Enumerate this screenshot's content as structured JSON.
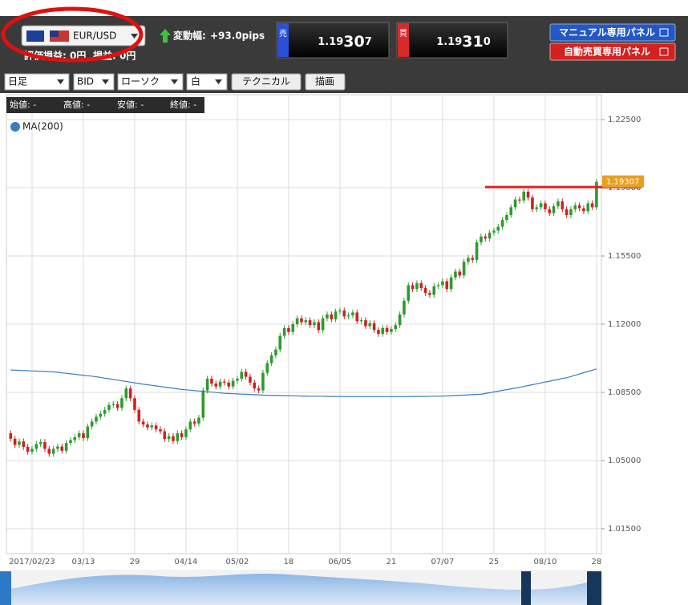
{
  "header": {
    "pair": "EUR/USD",
    "change_label": "変動幅:",
    "change": "+93.0pips",
    "pnl_label": "評価損益: 0円",
    "loss_label": "損益: 0円",
    "sell": {
      "label": "売",
      "price": [
        "1.19",
        "30",
        "7"
      ]
    },
    "buy": {
      "label": "買",
      "price": [
        "1.19",
        "31",
        "0"
      ]
    },
    "buttons": [
      "マニュアル専用パネル",
      "自動売買専用パネル"
    ]
  },
  "toolbar": {
    "selects": [
      "日足",
      "BID",
      "ローソク",
      "白"
    ],
    "buttons": [
      "テクニカル",
      "描画"
    ]
  },
  "ohlc_info": [
    "始値: -",
    "高値: -",
    "安値: -",
    "終値: -"
  ],
  "chart_data": {
    "type": "candlestick",
    "up_color": "#2e9b2e",
    "down_color": "#cc2222",
    "grid": true,
    "categories": [
      null,
      null,
      null,
      null,
      null,
      "2017/02/23",
      null,
      null,
      null,
      null,
      null,
      null,
      null,
      null,
      null,
      null,
      null,
      "03/13",
      null,
      null,
      null,
      null,
      null,
      null,
      null,
      null,
      null,
      null,
      null,
      "29",
      null,
      null,
      null,
      null,
      null,
      null,
      null,
      null,
      null,
      null,
      null,
      "04/14",
      null,
      null,
      null,
      null,
      null,
      null,
      null,
      null,
      null,
      null,
      null,
      "05/02",
      null,
      null,
      null,
      null,
      null,
      null,
      null,
      null,
      null,
      null,
      null,
      "18",
      null,
      null,
      null,
      null,
      null,
      null,
      null,
      null,
      null,
      null,
      null,
      "06/05",
      null,
      null,
      null,
      null,
      null,
      null,
      null,
      null,
      null,
      null,
      null,
      "21",
      null,
      null,
      null,
      null,
      null,
      null,
      null,
      null,
      null,
      null,
      null,
      "07/07",
      null,
      null,
      null,
      null,
      null,
      null,
      null,
      null,
      null,
      null,
      null,
      "25",
      null,
      null,
      null,
      null,
      null,
      null,
      null,
      null,
      null,
      null,
      null,
      "08/10",
      null,
      null,
      null,
      null,
      null,
      null,
      null,
      null,
      null,
      null,
      null,
      "28"
    ],
    "open": [
      1.064,
      1.0612,
      1.058,
      1.0598,
      1.057,
      1.0545,
      1.056,
      1.0585,
      1.0595,
      1.056,
      1.0535,
      1.056,
      1.0572,
      1.055,
      1.059,
      1.0605,
      1.062,
      1.064,
      1.0615,
      1.0675,
      1.07,
      1.0725,
      1.074,
      1.076,
      1.0785,
      1.079,
      1.077,
      1.082,
      1.087,
      1.082,
      1.076,
      1.07,
      1.0685,
      1.067,
      1.068,
      1.066,
      1.065,
      1.061,
      1.0625,
      1.06,
      1.064,
      1.062,
      1.066,
      1.07,
      1.069,
      1.072,
      1.086,
      1.092,
      1.0895,
      1.088,
      1.0905,
      1.09,
      1.088,
      1.091,
      1.092,
      1.0955,
      1.093,
      1.09,
      1.087,
      1.086,
      1.095,
      1.1,
      1.104,
      1.107,
      1.114,
      1.118,
      1.116,
      1.12,
      1.123,
      1.121,
      1.122,
      1.1195,
      1.121,
      1.117,
      1.123,
      1.125,
      1.1225,
      1.1265,
      1.127,
      1.124,
      1.1245,
      1.126,
      1.1215,
      1.122,
      1.119,
      1.1205,
      1.117,
      1.115,
      1.118,
      1.116,
      1.1175,
      1.1195,
      1.125,
      1.132,
      1.14,
      1.138,
      1.141,
      1.1385,
      1.136,
      1.135,
      1.1395,
      1.14,
      1.142,
      1.138,
      1.144,
      1.147,
      1.145,
      1.152,
      1.154,
      1.153,
      1.162,
      1.165,
      1.164,
      1.167,
      1.168,
      1.17,
      1.1735,
      1.176,
      1.18,
      1.184,
      1.1835,
      1.188,
      1.185,
      1.179,
      1.18,
      1.182,
      1.179,
      1.177,
      1.1805,
      1.183,
      1.179,
      1.176,
      1.179,
      1.181,
      1.1795,
      1.178,
      1.182,
      1.18
    ],
    "high": [
      1.0655,
      1.0627,
      1.0613,
      1.0613,
      1.0585,
      1.0575,
      1.06,
      1.061,
      1.061,
      1.0575,
      1.0575,
      1.0587,
      1.0587,
      1.0605,
      1.062,
      1.0635,
      1.0655,
      1.0655,
      1.069,
      1.0715,
      1.074,
      1.0755,
      1.0775,
      1.08,
      1.0805,
      1.0805,
      1.0835,
      1.0885,
      1.0885,
      1.0835,
      1.0775,
      1.0715,
      1.07,
      1.0695,
      1.0695,
      1.0675,
      1.0665,
      1.064,
      1.064,
      1.0655,
      1.0655,
      1.0675,
      1.0715,
      1.0715,
      1.0735,
      1.0875,
      1.0935,
      1.0935,
      1.091,
      1.092,
      1.092,
      1.0915,
      1.0925,
      1.0935,
      1.097,
      1.097,
      1.0945,
      1.0915,
      1.0885,
      1.0965,
      1.1015,
      1.1055,
      1.1085,
      1.1155,
      1.1195,
      1.1195,
      1.1215,
      1.1245,
      1.1245,
      1.1235,
      1.1235,
      1.1225,
      1.1225,
      1.1245,
      1.1265,
      1.1265,
      1.128,
      1.1285,
      1.1285,
      1.126,
      1.1275,
      1.1275,
      1.1235,
      1.1235,
      1.122,
      1.122,
      1.1185,
      1.1195,
      1.1195,
      1.119,
      1.121,
      1.1265,
      1.1335,
      1.1415,
      1.1415,
      1.1425,
      1.1425,
      1.14,
      1.1375,
      1.141,
      1.1415,
      1.1435,
      1.1435,
      1.1455,
      1.1485,
      1.1485,
      1.1535,
      1.1555,
      1.1555,
      1.1635,
      1.1665,
      1.1665,
      1.1685,
      1.1695,
      1.1715,
      1.175,
      1.1775,
      1.1815,
      1.1855,
      1.1855,
      1.1895,
      1.1895,
      1.1865,
      1.1815,
      1.1835,
      1.1835,
      1.1805,
      1.182,
      1.1845,
      1.1845,
      1.1805,
      1.1805,
      1.1825,
      1.1825,
      1.181,
      1.1835,
      1.1835,
      1.1946
    ],
    "low": [
      1.0597,
      1.0565,
      1.0565,
      1.0555,
      1.053,
      1.053,
      1.0545,
      1.057,
      1.0545,
      1.052,
      1.052,
      1.0545,
      1.0535,
      1.0535,
      1.0575,
      1.059,
      1.0605,
      1.06,
      1.06,
      1.066,
      1.0685,
      1.071,
      1.0725,
      1.0745,
      1.077,
      1.0755,
      1.0755,
      1.0805,
      1.0805,
      1.0745,
      1.0685,
      1.067,
      1.0655,
      1.0655,
      1.0645,
      1.0635,
      1.0595,
      1.0595,
      1.0585,
      1.0585,
      1.0605,
      1.0605,
      1.0645,
      1.0675,
      1.0675,
      1.0705,
      1.0845,
      1.088,
      1.0865,
      1.0865,
      1.0885,
      1.0865,
      1.0865,
      1.0895,
      1.0905,
      1.0915,
      1.0885,
      1.0855,
      1.0845,
      1.0845,
      1.0935,
      1.0985,
      1.1025,
      1.1055,
      1.1125,
      1.1145,
      1.1145,
      1.1185,
      1.1195,
      1.1195,
      1.118,
      1.118,
      1.1155,
      1.1155,
      1.1215,
      1.121,
      1.121,
      1.125,
      1.1225,
      1.1225,
      1.123,
      1.12,
      1.12,
      1.1175,
      1.1175,
      1.1155,
      1.1135,
      1.1135,
      1.1145,
      1.1145,
      1.116,
      1.118,
      1.1235,
      1.1305,
      1.1365,
      1.1365,
      1.137,
      1.1345,
      1.1335,
      1.1335,
      1.138,
      1.1385,
      1.1365,
      1.1365,
      1.1425,
      1.1435,
      1.1435,
      1.1505,
      1.1515,
      1.1515,
      1.1605,
      1.1625,
      1.1625,
      1.1655,
      1.1665,
      1.1685,
      1.172,
      1.1745,
      1.1785,
      1.182,
      1.182,
      1.1835,
      1.1775,
      1.1775,
      1.1785,
      1.1775,
      1.1755,
      1.1755,
      1.179,
      1.1775,
      1.1745,
      1.1745,
      1.1775,
      1.178,
      1.1765,
      1.1765,
      1.1785,
      1.1785
    ],
    "close": [
      1.0612,
      1.058,
      1.0598,
      1.057,
      1.0545,
      1.056,
      1.0585,
      1.0595,
      1.056,
      1.0535,
      1.056,
      1.0572,
      1.055,
      1.059,
      1.0605,
      1.062,
      1.064,
      1.0615,
      1.0675,
      1.07,
      1.0725,
      1.074,
      1.076,
      1.0785,
      1.079,
      1.077,
      1.082,
      1.087,
      1.082,
      1.076,
      1.07,
      1.0685,
      1.067,
      1.068,
      1.066,
      1.065,
      1.061,
      1.0625,
      1.06,
      1.064,
      1.062,
      1.066,
      1.07,
      1.069,
      1.072,
      1.086,
      1.092,
      1.0895,
      1.088,
      1.0905,
      1.09,
      1.088,
      1.091,
      1.092,
      1.0955,
      1.093,
      1.09,
      1.087,
      1.086,
      1.095,
      1.1,
      1.104,
      1.107,
      1.114,
      1.118,
      1.116,
      1.12,
      1.123,
      1.121,
      1.122,
      1.1195,
      1.121,
      1.117,
      1.123,
      1.125,
      1.1225,
      1.1265,
      1.127,
      1.124,
      1.1245,
      1.126,
      1.1215,
      1.122,
      1.119,
      1.1205,
      1.117,
      1.115,
      1.118,
      1.116,
      1.1175,
      1.1195,
      1.125,
      1.132,
      1.14,
      1.138,
      1.141,
      1.1385,
      1.136,
      1.135,
      1.1395,
      1.14,
      1.142,
      1.138,
      1.144,
      1.147,
      1.145,
      1.152,
      1.154,
      1.153,
      1.162,
      1.165,
      1.164,
      1.167,
      1.168,
      1.17,
      1.1735,
      1.176,
      1.18,
      1.184,
      1.1835,
      1.188,
      1.185,
      1.179,
      1.18,
      1.182,
      1.179,
      1.177,
      1.1805,
      1.183,
      1.179,
      1.176,
      1.179,
      1.181,
      1.1795,
      1.178,
      1.182,
      1.18,
      1.1931
    ],
    "series": [
      {
        "name": "MA(200)",
        "color": "#3a7cc4",
        "values": [
          1.0965,
          1.0964,
          1.0963,
          1.0962,
          1.0961,
          1.096,
          1.0959,
          1.0958,
          1.0957,
          1.0956,
          1.0955,
          1.0953,
          1.095,
          1.0948,
          1.0945,
          1.0943,
          1.094,
          1.0938,
          1.0935,
          1.0933,
          1.093,
          1.0927,
          1.0923,
          1.092,
          1.0916,
          1.0913,
          1.0909,
          1.0906,
          1.0902,
          1.0899,
          1.0895,
          1.0892,
          1.0889,
          1.0886,
          1.0883,
          1.088,
          1.0877,
          1.0874,
          1.0871,
          1.0868,
          1.0865,
          1.0863,
          1.0861,
          1.0859,
          1.0857,
          1.0855,
          1.0853,
          1.0851,
          1.0849,
          1.0847,
          1.0845,
          1.0844,
          1.0843,
          1.0842,
          1.0841,
          1.084,
          1.0839,
          1.0838,
          1.0837,
          1.0836,
          1.0835,
          1.0835,
          1.0834,
          1.0834,
          1.0833,
          1.0833,
          1.0832,
          1.0832,
          1.0831,
          1.0831,
          1.083,
          1.083,
          1.083,
          1.083,
          1.0829,
          1.0829,
          1.0829,
          1.0829,
          1.0828,
          1.0828,
          1.0828,
          1.0828,
          1.0828,
          1.0828,
          1.0828,
          1.0828,
          1.0828,
          1.0828,
          1.0828,
          1.0828,
          1.0828,
          1.0828,
          1.0828,
          1.0828,
          1.0829,
          1.0829,
          1.0829,
          1.0829,
          1.083,
          1.083,
          1.083,
          1.0831,
          1.0832,
          1.0833,
          1.0834,
          1.0835,
          1.0836,
          1.0837,
          1.0838,
          1.0839,
          1.084,
          1.0844,
          1.0848,
          1.0852,
          1.0856,
          1.086,
          1.0864,
          1.0868,
          1.0872,
          1.0876,
          1.088,
          1.0885,
          1.0889,
          1.0894,
          1.0898,
          1.0903,
          1.0907,
          1.0912,
          1.0916,
          1.0921,
          1.0925,
          1.0931,
          1.0938,
          1.0944,
          1.0951,
          1.0957,
          1.0964,
          1.097
        ]
      }
    ],
    "ylim": [
      1.0022,
      1.2378
    ],
    "yticks": [
      {
        "value": 1.015,
        "label": "1.01500"
      },
      {
        "value": 1.05,
        "label": "1.05000"
      },
      {
        "value": 1.085,
        "label": "1.08500"
      },
      {
        "value": 1.12,
        "label": "1.12000"
      },
      {
        "value": 1.155,
        "label": "1.15500"
      },
      {
        "value": 1.19,
        "label": "1.19000"
      },
      {
        "value": 1.225,
        "label": "1.22500"
      }
    ],
    "hline": {
      "value": 1.1904,
      "color": "#e02020"
    },
    "last_price": {
      "value": 1.19307,
      "label": "1.19307",
      "color": "#e8a020"
    }
  }
}
